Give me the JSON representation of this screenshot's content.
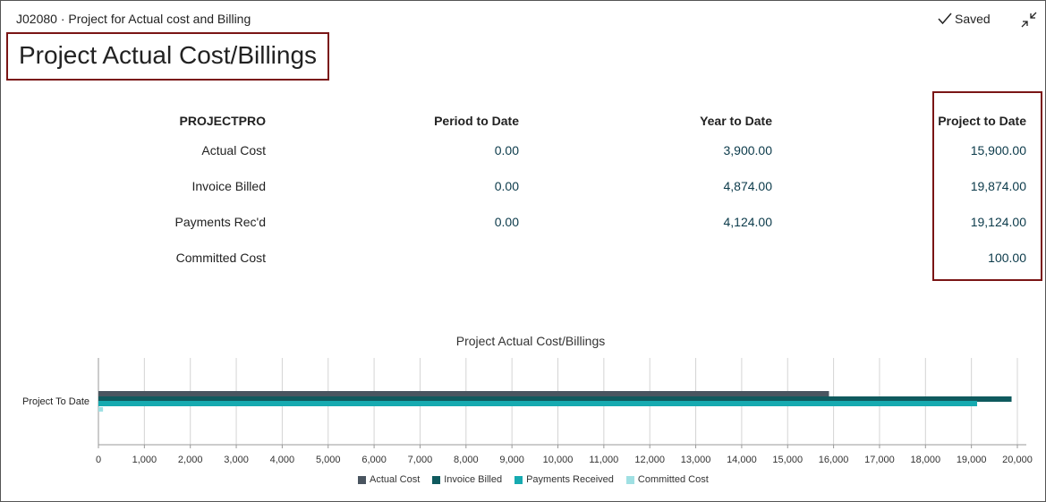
{
  "header": {
    "record_title": "J02080 · Project for Actual cost and Billing",
    "saved_label": "Saved",
    "page_title": "Project Actual Cost/Billings"
  },
  "table": {
    "columns": [
      "PROJECTPRO",
      "Period to Date",
      "Year to Date",
      "Project to Date"
    ],
    "rows": [
      {
        "label": "Actual Cost",
        "period": "0.00",
        "year": "3,900.00",
        "project": "15,900.00"
      },
      {
        "label": "Invoice Billed",
        "period": "0.00",
        "year": "4,874.00",
        "project": "19,874.00"
      },
      {
        "label": "Payments Rec'd",
        "period": "0.00",
        "year": "4,124.00",
        "project": "19,124.00"
      },
      {
        "label": "Committed Cost",
        "period": "",
        "year": "",
        "project": "100.00"
      }
    ]
  },
  "chart_data": {
    "type": "bar",
    "orientation": "horizontal",
    "title": "Project Actual Cost/Billings",
    "categories": [
      "Project To Date"
    ],
    "series": [
      {
        "name": "Actual Cost",
        "values": [
          15900
        ],
        "color": "#4a5560"
      },
      {
        "name": "Invoice Billed",
        "values": [
          19874
        ],
        "color": "#0f5a5e"
      },
      {
        "name": "Payments Received",
        "values": [
          19124
        ],
        "color": "#16aab0"
      },
      {
        "name": "Committed Cost",
        "values": [
          100
        ],
        "color": "#9fe0e3"
      }
    ],
    "xlim": [
      0,
      20000
    ],
    "x_ticks": [
      "0",
      "1,000",
      "2,000",
      "3,000",
      "4,000",
      "5,000",
      "6,000",
      "7,000",
      "8,000",
      "9,000",
      "10,000",
      "11,000",
      "12,000",
      "13,000",
      "14,000",
      "15,000",
      "16,000",
      "17,000",
      "18,000",
      "19,000",
      "20,000"
    ],
    "grid": true,
    "legend_position": "bottom"
  }
}
